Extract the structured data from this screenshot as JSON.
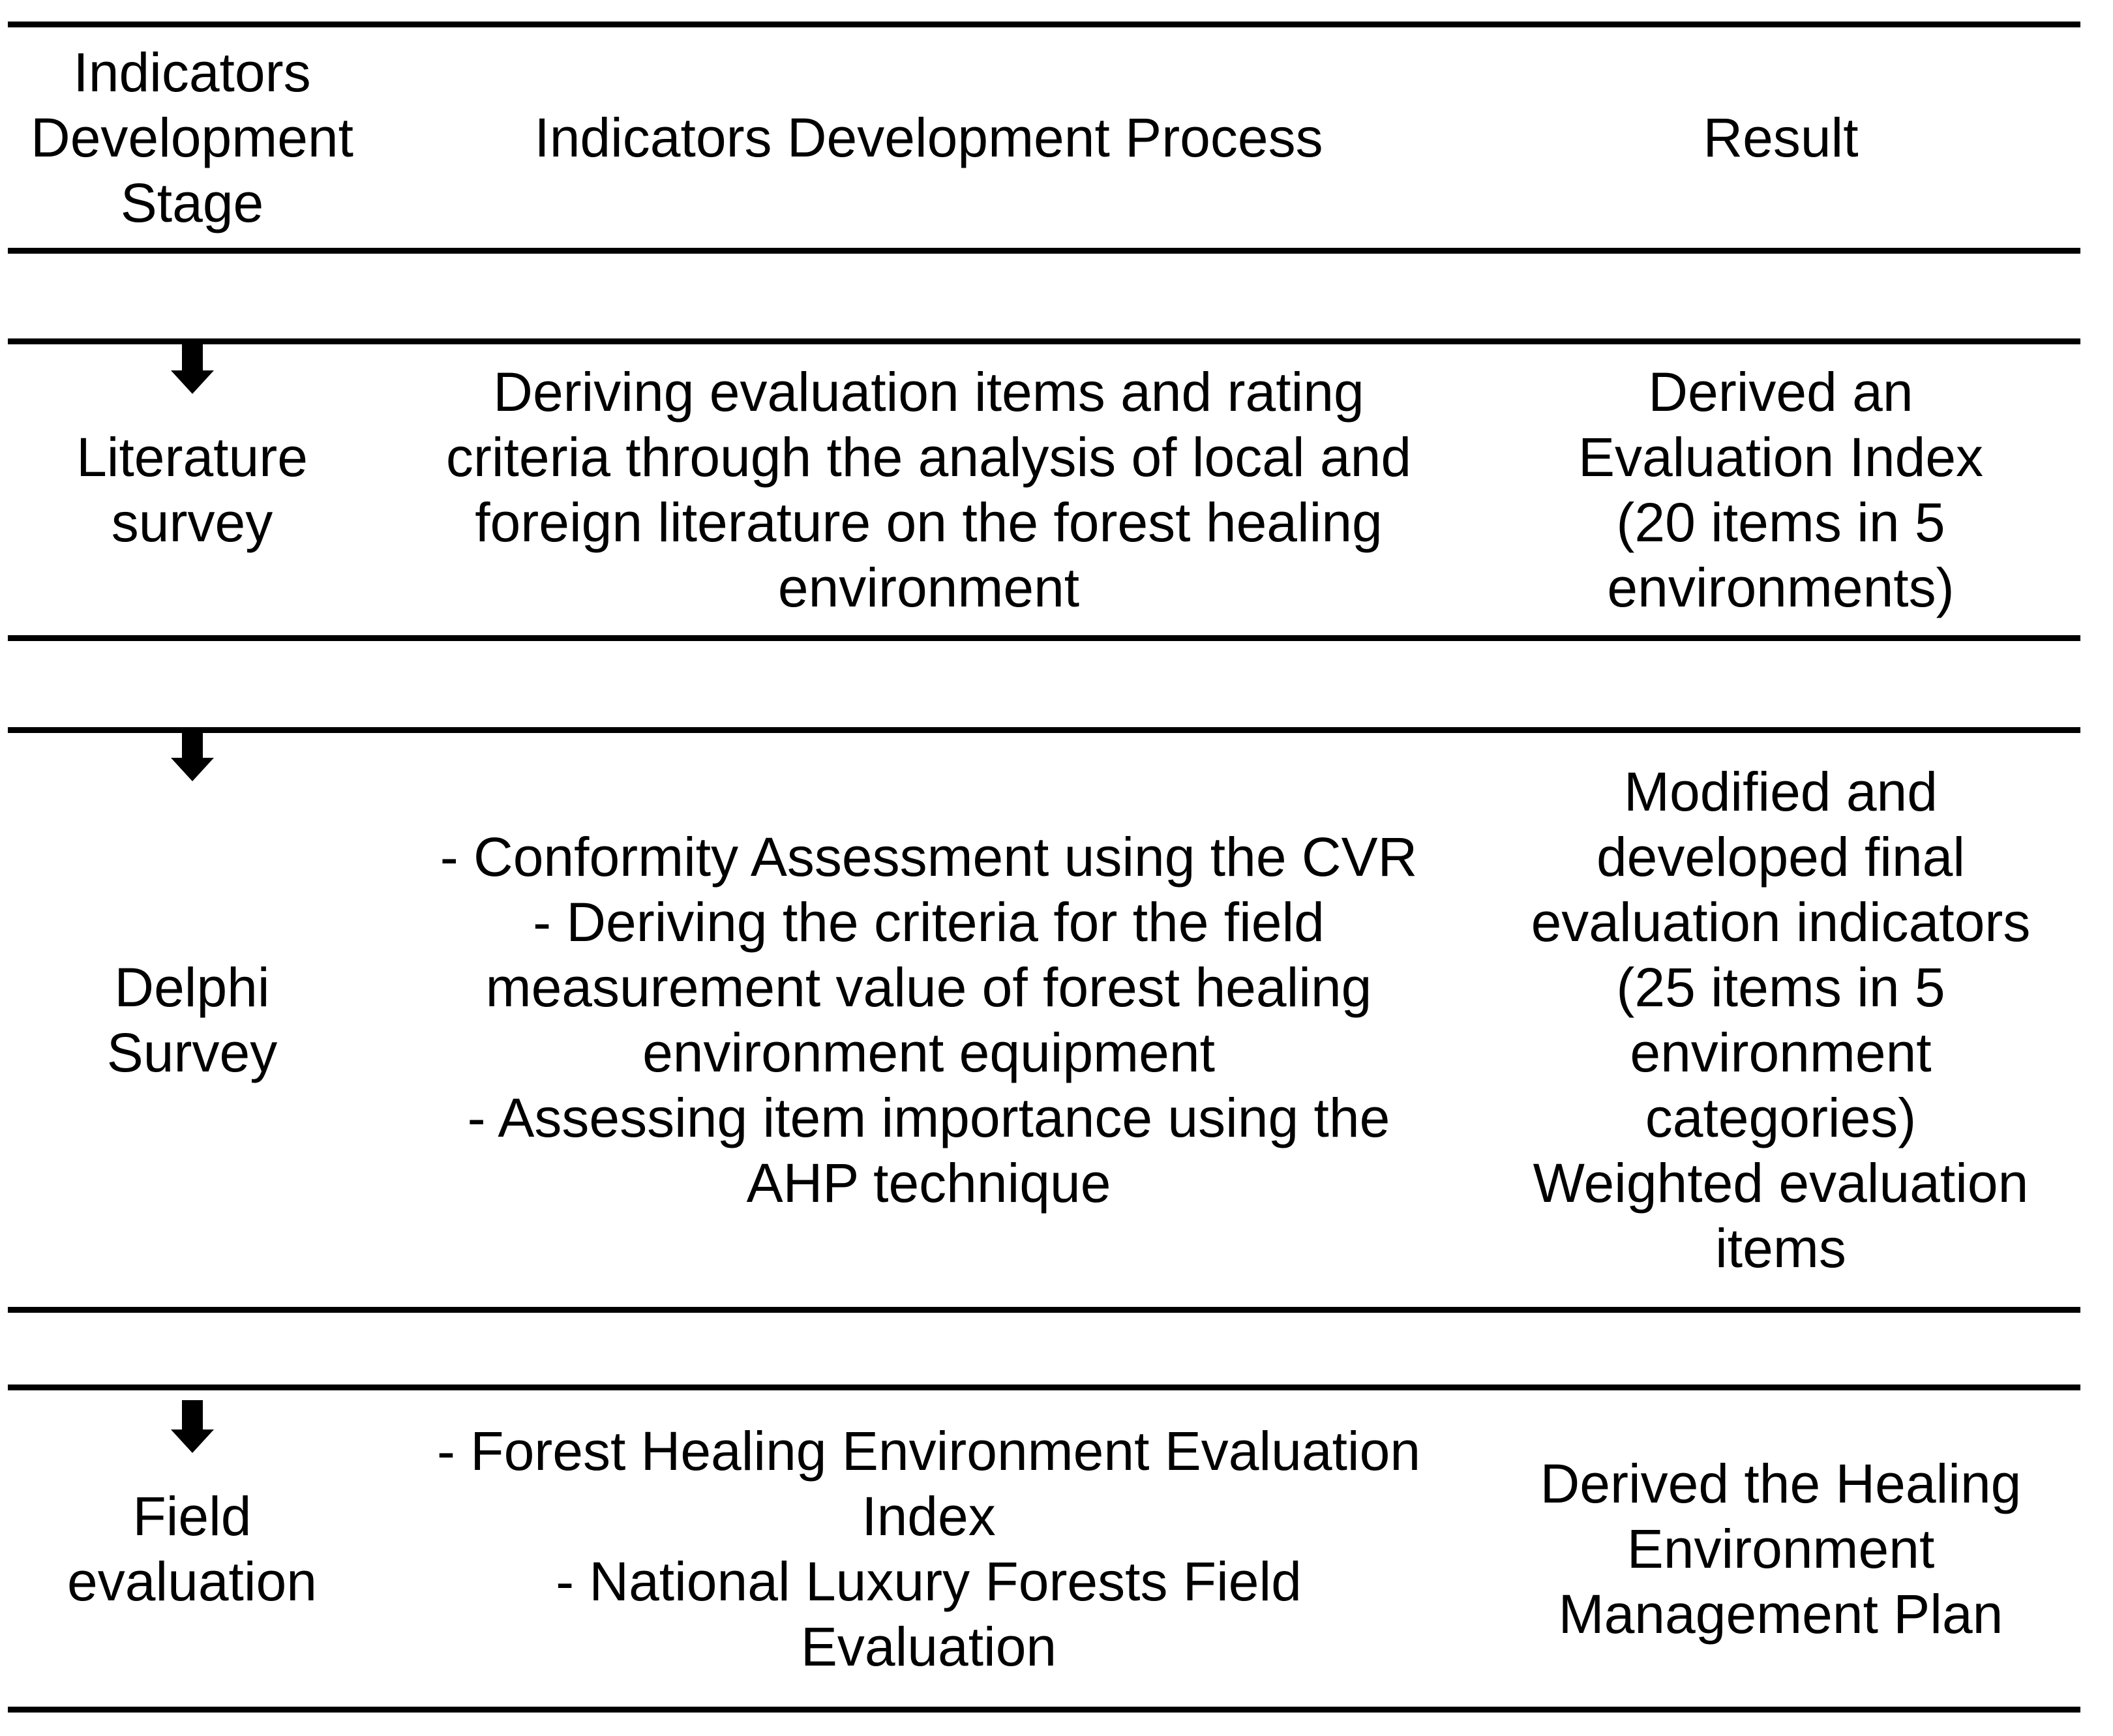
{
  "header": {
    "stage": "Indicators\nDevelopment\nStage",
    "process": "Indicators Development Process",
    "result": "Result"
  },
  "rows": [
    {
      "stage": "Literature\nsurvey",
      "process": "Deriving evaluation items and rating\ncriteria through the analysis of local and\nforeign literature on the forest healing\nenvironment",
      "result": "Derived an\nEvaluation Index\n(20 items in 5\nenvironments)"
    },
    {
      "stage": "Delphi\nSurvey",
      "process": "- Conformity Assessment using the CVR\n- Deriving the criteria for the field\nmeasurement value of forest healing\nenvironment equipment\n- Assessing item importance using the\nAHP technique",
      "result": "Modified and\ndeveloped final\nevaluation indicators\n(25 items in 5\nenvironment\ncategories)\nWeighted evaluation\nitems"
    },
    {
      "stage": "Field\nevaluation",
      "process": "- Forest Healing Environment Evaluation\nIndex\n- National Luxury Forests Field\nEvaluation",
      "result": "Derived the Healing\nEnvironment\nManagement Plan"
    }
  ],
  "icons": {
    "down_arrow": "down-arrow"
  },
  "colors": {
    "text": "#000000",
    "rule": "#000000",
    "background": "#ffffff"
  }
}
